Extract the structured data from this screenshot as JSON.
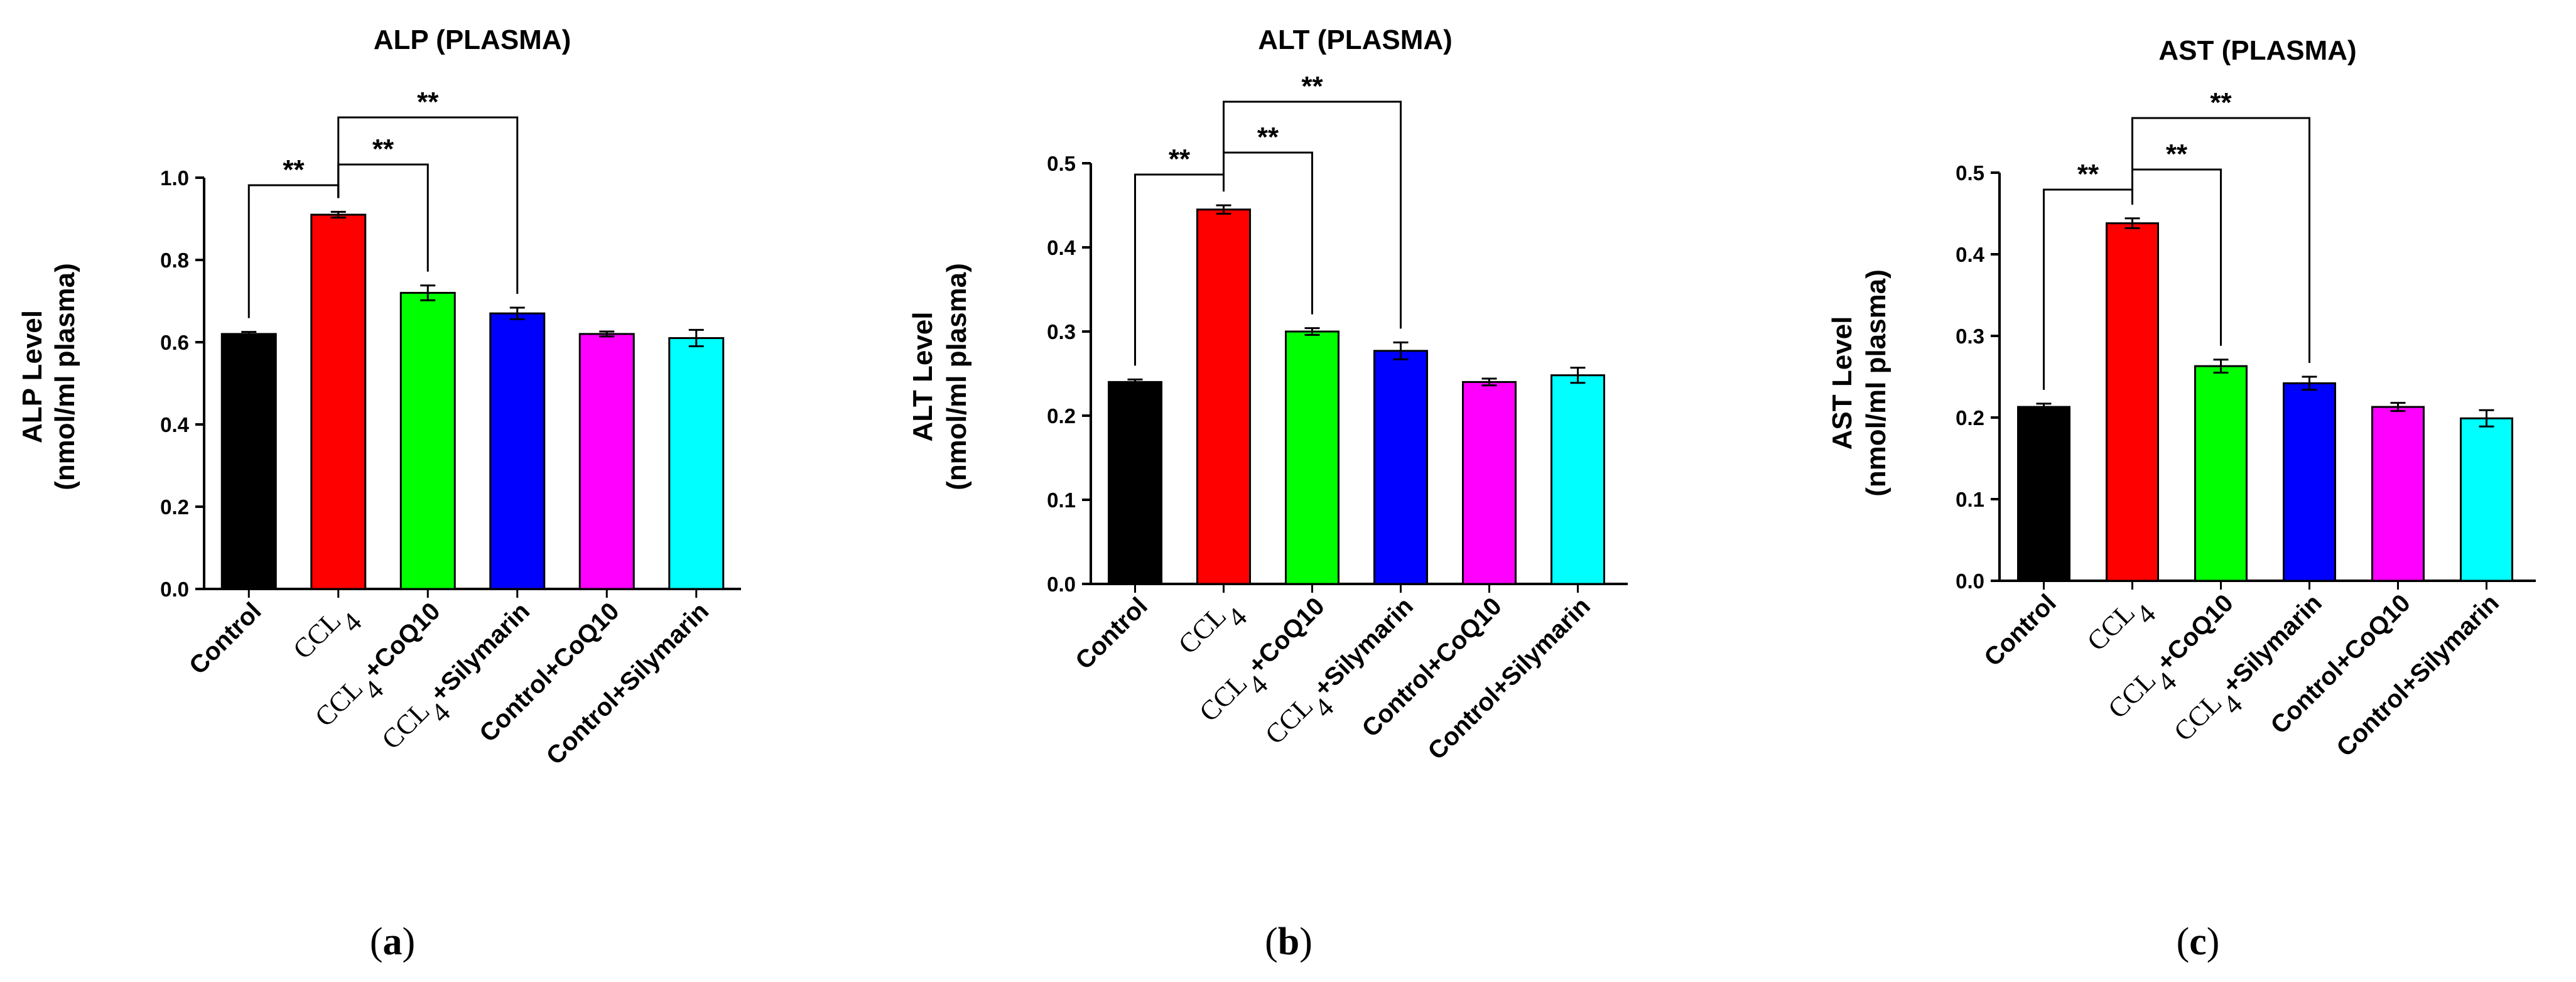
{
  "chart_data": [
    {
      "type": "bar",
      "panel_label": "a",
      "title": "ALP (PLASMA)",
      "xlabel": "",
      "ylabel": [
        "ALP Level",
        "(nmol/ml plasma)"
      ],
      "ylim": [
        0,
        1.0
      ],
      "yticks": [
        "0.0",
        "0.2",
        "0.4",
        "0.6",
        "0.8",
        "1.0"
      ],
      "yticks_values": [
        0,
        0.2,
        0.4,
        0.6,
        0.8,
        1.0
      ],
      "categories": [
        "Control",
        "CCL4",
        "CCL4+CoQ10",
        "CCL4+Silymarin",
        "Control+CoQ10",
        "Control+Silymarin"
      ],
      "values": [
        0.62,
        0.91,
        0.72,
        0.67,
        0.62,
        0.61
      ],
      "errors": [
        0.005,
        0.007,
        0.018,
        0.014,
        0.006,
        0.02
      ],
      "colors": [
        "#000000",
        "#ff0000",
        "#00ff00",
        "#0000ff",
        "#ff00ff",
        "#00ffff"
      ],
      "significance": [
        {
          "from": 0,
          "to": 1,
          "label": "**"
        },
        {
          "from": 1,
          "to": 2,
          "label": "**"
        },
        {
          "from": 1,
          "to": 3,
          "label": "**"
        }
      ]
    },
    {
      "type": "bar",
      "panel_label": "b",
      "title": "ALT (PLASMA)",
      "xlabel": "",
      "ylabel": [
        "ALT Level",
        "(nmol/ml plasma)"
      ],
      "ylim": [
        0,
        0.5
      ],
      "yticks": [
        "0.0",
        "0.1",
        "0.2",
        "0.3",
        "0.4",
        "0.5"
      ],
      "yticks_values": [
        0,
        0.1,
        0.2,
        0.3,
        0.4,
        0.5
      ],
      "categories": [
        "Control",
        "CCL4",
        "CCL4+CoQ10",
        "CCL4+Silymarin",
        "Control+CoQ10",
        "Control+Silymarin"
      ],
      "values": [
        0.24,
        0.445,
        0.3,
        0.277,
        0.24,
        0.248
      ],
      "errors": [
        0.003,
        0.005,
        0.004,
        0.01,
        0.004,
        0.009
      ],
      "colors": [
        "#000000",
        "#ff0000",
        "#00ff00",
        "#0000ff",
        "#ff00ff",
        "#00ffff"
      ],
      "significance": [
        {
          "from": 0,
          "to": 1,
          "label": "**"
        },
        {
          "from": 1,
          "to": 2,
          "label": "**"
        },
        {
          "from": 1,
          "to": 3,
          "label": "**"
        }
      ]
    },
    {
      "type": "bar",
      "panel_label": "c",
      "title": "AST (PLASMA)",
      "xlabel": "",
      "ylabel": [
        "AST Level",
        "(nmol/ml plasma)"
      ],
      "ylim": [
        0,
        0.5
      ],
      "yticks": [
        "0.0",
        "0.1",
        "0.2",
        "0.3",
        "0.4",
        "0.5"
      ],
      "yticks_values": [
        0,
        0.1,
        0.2,
        0.3,
        0.4,
        0.5
      ],
      "categories": [
        "Control",
        "CCL4",
        "CCL4+CoQ10",
        "CCL4+Silymarin",
        "Control+CoQ10",
        "Control+Silymarin"
      ],
      "values": [
        0.213,
        0.438,
        0.263,
        0.242,
        0.213,
        0.199
      ],
      "errors": [
        0.004,
        0.006,
        0.008,
        0.008,
        0.005,
        0.01
      ],
      "colors": [
        "#000000",
        "#ff0000",
        "#00ff00",
        "#0000ff",
        "#ff00ff",
        "#00ffff"
      ],
      "significance": [
        {
          "from": 0,
          "to": 1,
          "label": "**"
        },
        {
          "from": 1,
          "to": 2,
          "label": "**"
        },
        {
          "from": 1,
          "to": 3,
          "label": "**"
        }
      ]
    }
  ]
}
